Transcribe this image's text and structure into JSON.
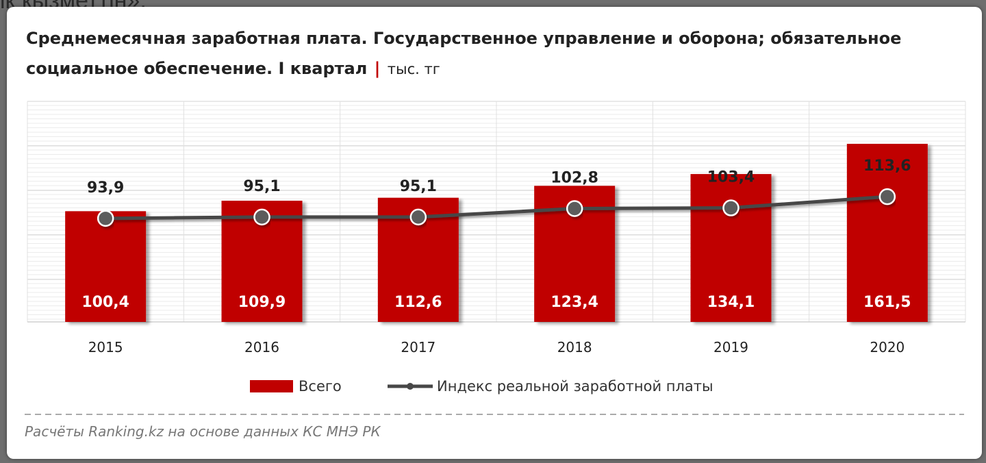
{
  "background_text": "ік қызметтің»,",
  "title_main": "Среднемесячная заработная плата. Государственное управление и оборона; обязательное социальное обеспечение. I квартал",
  "title_separator": "|",
  "title_unit": "тыс. тг",
  "source": "Расчёты Ranking.kz на основе данных КС МНЭ РК",
  "colors": {
    "bar": "#c00000",
    "line": "#474747",
    "marker": "#5b5b5b"
  },
  "chart_data": {
    "type": "bar",
    "categories": [
      "2015",
      "2016",
      "2017",
      "2018",
      "2019",
      "2020"
    ],
    "series": [
      {
        "name": "Всего",
        "type": "bar",
        "values": [
          100.4,
          109.9,
          112.6,
          123.4,
          134.1,
          161.5
        ],
        "labels": [
          "100,4",
          "109,9",
          "112,6",
          "123,4",
          "134,1",
          "161,5"
        ]
      },
      {
        "name": "Индекс реальной заработной платы",
        "type": "line",
        "values": [
          93.9,
          95.1,
          95.1,
          102.8,
          103.4,
          113.6
        ],
        "labels": [
          "93,9",
          "95,1",
          "95,1",
          "102,8",
          "103,4",
          "113,6"
        ]
      }
    ],
    "ylim": [
      0,
      200
    ],
    "grid": true,
    "legend": "bottom"
  }
}
